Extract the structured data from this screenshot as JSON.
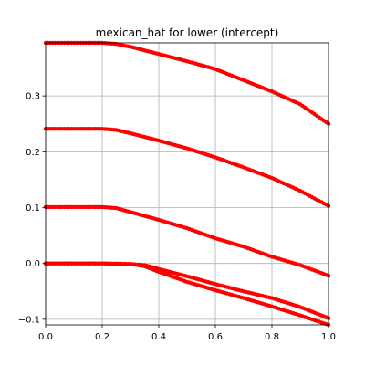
{
  "chart_data": {
    "type": "scatter",
    "title": "mexican_hat for lower (intercept)",
    "xlabel": "",
    "ylabel": "",
    "xlim": [
      0.0,
      1.0
    ],
    "ylim": [
      -0.11,
      0.395
    ],
    "grid": true,
    "x_ticks": [
      "0.0",
      "0.2",
      "0.4",
      "0.6",
      "0.8",
      "1.0"
    ],
    "y_ticks": [
      "−0.1",
      "0.0",
      "0.1",
      "0.2",
      "0.3"
    ],
    "x_tick_values": [
      0.0,
      0.2,
      0.4,
      0.6,
      0.8,
      1.0
    ],
    "y_tick_values": [
      -0.1,
      0.0,
      0.1,
      0.2,
      0.3
    ],
    "marker_color": "#ff0000",
    "series": [
      {
        "x": [
          0.0,
          0.1,
          0.2,
          0.25,
          0.3,
          0.4,
          0.5,
          0.6,
          0.7,
          0.8,
          0.9,
          1.0
        ],
        "y": [
          0.395,
          0.395,
          0.395,
          0.393,
          0.388,
          0.375,
          0.362,
          0.348,
          0.328,
          0.308,
          0.285,
          0.25
        ]
      },
      {
        "x": [
          0.0,
          0.1,
          0.2,
          0.25,
          0.3,
          0.4,
          0.5,
          0.6,
          0.7,
          0.8,
          0.9,
          1.0
        ],
        "y": [
          0.241,
          0.241,
          0.241,
          0.239,
          0.233,
          0.22,
          0.206,
          0.19,
          0.172,
          0.153,
          0.13,
          0.103
        ]
      },
      {
        "x": [
          0.0,
          0.1,
          0.2,
          0.25,
          0.3,
          0.4,
          0.5,
          0.6,
          0.7,
          0.8,
          0.9,
          1.0
        ],
        "y": [
          0.101,
          0.101,
          0.101,
          0.099,
          0.092,
          0.078,
          0.063,
          0.045,
          0.03,
          0.012,
          -0.003,
          -0.022
        ]
      },
      {
        "x": [
          0.0,
          0.1,
          0.2,
          0.3,
          0.35,
          0.4,
          0.5,
          0.6,
          0.7,
          0.8,
          0.9,
          1.0
        ],
        "y": [
          0.0,
          0.0,
          0.0,
          -0.001,
          -0.003,
          -0.01,
          -0.023,
          -0.037,
          -0.05,
          -0.062,
          -0.078,
          -0.098
        ]
      },
      {
        "x": [
          0.0,
          0.1,
          0.2,
          0.3,
          0.35,
          0.4,
          0.5,
          0.6,
          0.7,
          0.8,
          0.9,
          1.0
        ],
        "y": [
          0.0,
          0.0,
          0.0,
          -0.001,
          -0.005,
          -0.015,
          -0.033,
          -0.048,
          -0.062,
          -0.077,
          -0.093,
          -0.11
        ]
      }
    ]
  }
}
